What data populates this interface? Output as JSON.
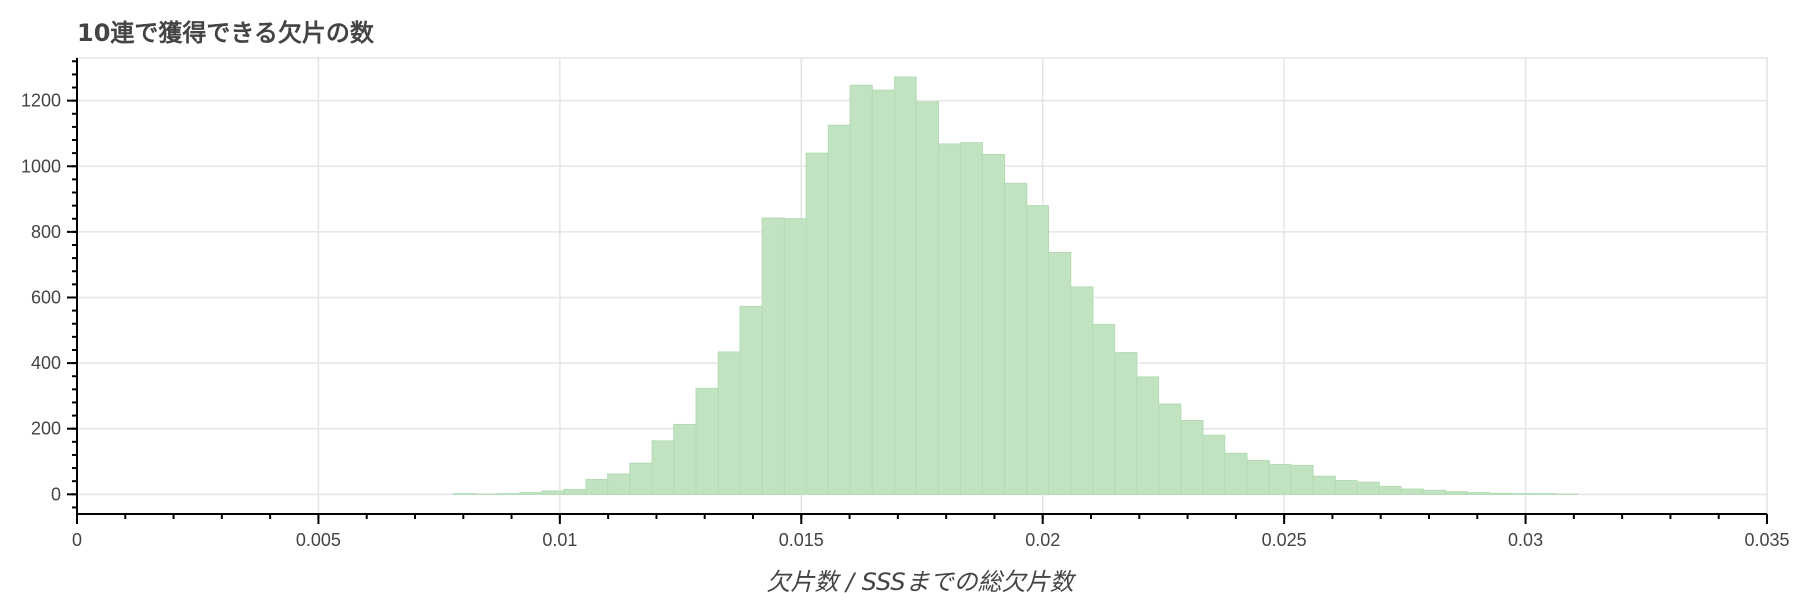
{
  "chart_data": {
    "type": "bar",
    "title": "10連で獲得できる欠片の数",
    "xlabel": "欠片数 / SSSまでの総欠片数",
    "ylabel": "",
    "xlim": [
      0,
      0.035
    ],
    "ylim": [
      -60,
      1330
    ],
    "x_ticks": [
      0,
      0.005,
      0.01,
      0.015,
      0.02,
      0.025,
      0.03,
      0.035
    ],
    "x_tick_labels": [
      "0",
      "0.005",
      "0.01",
      "0.015",
      "0.02",
      "0.025",
      "0.03",
      "0.035"
    ],
    "y_ticks": [
      0,
      200,
      400,
      600,
      800,
      1000,
      1200
    ],
    "y_tick_labels": [
      "0",
      "200",
      "400",
      "600",
      "800",
      "1000",
      "1200"
    ],
    "grid": true,
    "bin_edges": [
      0.0078,
      0.00826,
      0.00871,
      0.00917,
      0.00963,
      0.01008,
      0.01054,
      0.01099,
      0.01145,
      0.01191,
      0.01236,
      0.01282,
      0.01328,
      0.01373,
      0.01419,
      0.01465,
      0.0151,
      0.01556,
      0.01601,
      0.01647,
      0.01693,
      0.01738,
      0.01784,
      0.0183,
      0.01875,
      0.01921,
      0.01967,
      0.02012,
      0.02058,
      0.02104,
      0.02149,
      0.02195,
      0.0224,
      0.02286,
      0.02332,
      0.02377,
      0.02423,
      0.02469,
      0.02514,
      0.0256,
      0.02606,
      0.02651,
      0.02697,
      0.02742,
      0.02788,
      0.02834,
      0.02879,
      0.02925,
      0.02971,
      0.03016,
      0.03062,
      0.03108
    ],
    "values": [
      2,
      1,
      2,
      5,
      10,
      15,
      45,
      62,
      95,
      163,
      213,
      323,
      434,
      573,
      842,
      840,
      1040,
      1125,
      1247,
      1232,
      1272,
      1196,
      1068,
      1072,
      1036,
      948,
      880,
      737,
      632,
      518,
      432,
      358,
      275,
      225,
      180,
      125,
      103,
      91,
      88,
      55,
      42,
      37,
      24,
      16,
      12,
      8,
      5,
      3,
      2,
      2,
      1
    ]
  }
}
